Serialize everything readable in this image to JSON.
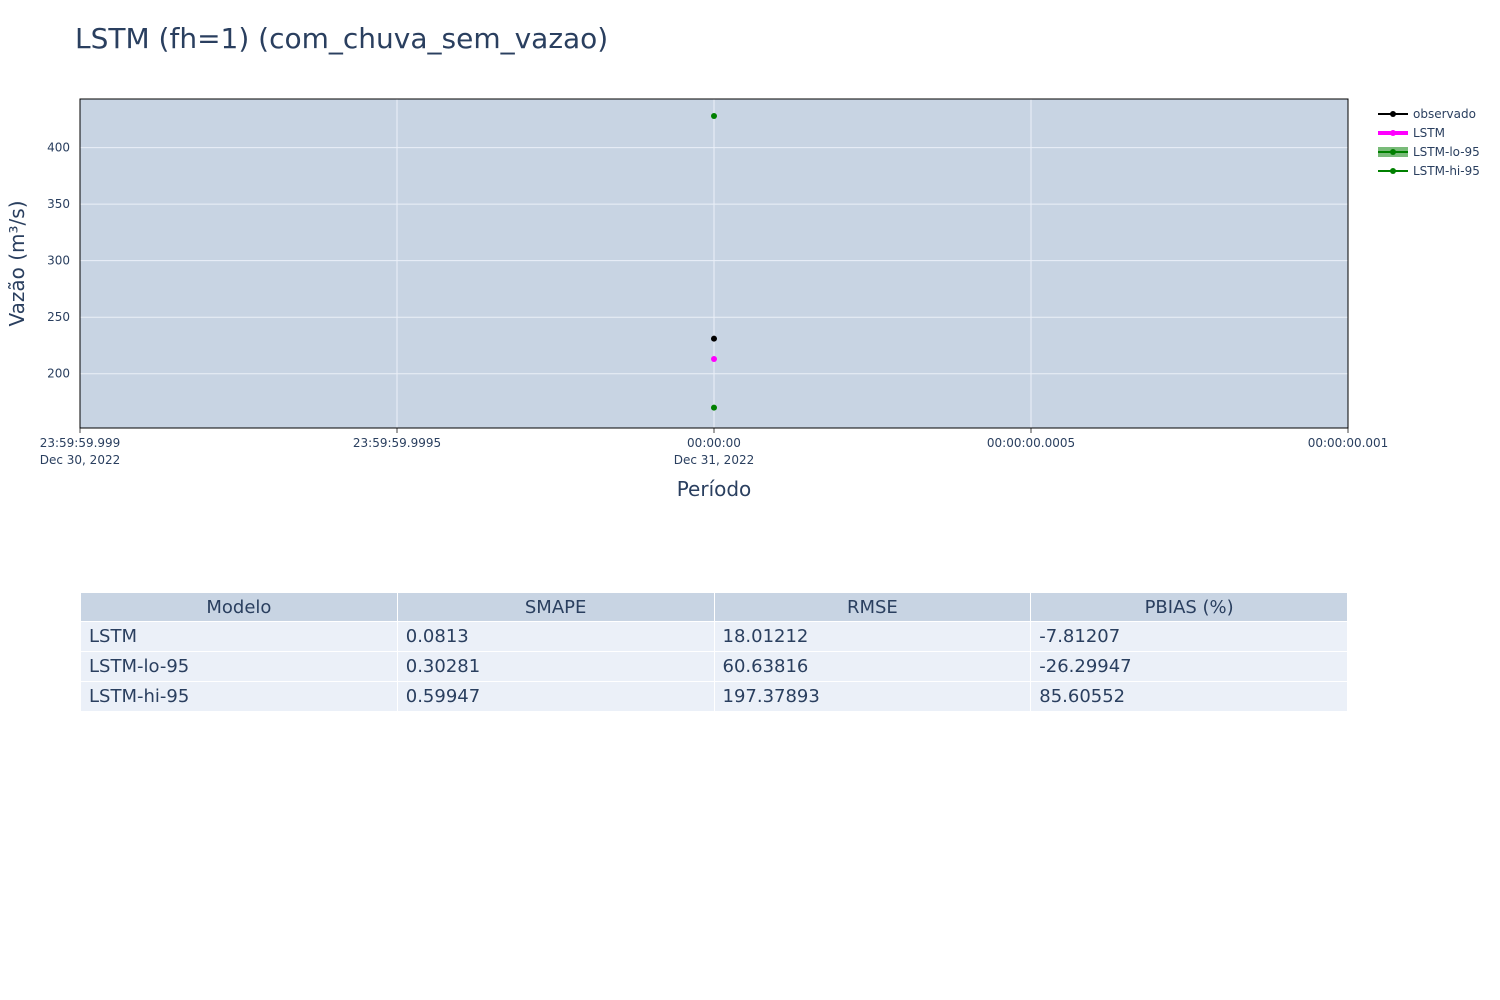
{
  "title": "LSTM (fh=1) (com_chuva_sem_vazao)",
  "colors": {
    "plot_bg": "#c8d4e3",
    "grid": "#ebf0f8",
    "observado": "#000000",
    "lstm": "#ff00ff",
    "lo95": "#008000",
    "hi95": "#008000",
    "band": "#6ab46a"
  },
  "chart_data": {
    "type": "scatter",
    "title": "LSTM (fh=1) (com_chuva_sem_vazao)",
    "xlabel": "Período",
    "ylabel": "Vazão (m³/s)",
    "ylim": [
      152,
      443
    ],
    "yticks": [
      200,
      250,
      300,
      350,
      400
    ],
    "xlim": [
      -0.001,
      0.001
    ],
    "xticks": [
      {
        "value": -0.001,
        "line1": "23:59:59.999",
        "line2": "Dec 30, 2022"
      },
      {
        "value": -0.0005,
        "line1": "23:59:59.9995",
        "line2": ""
      },
      {
        "value": 0,
        "line1": "00:00:00",
        "line2": "Dec 31, 2022"
      },
      {
        "value": 0.0005,
        "line1": "00:00:00.0005",
        "line2": ""
      },
      {
        "value": 0.001,
        "line1": "00:00:00.001",
        "line2": ""
      }
    ],
    "x_note": "x values in seconds relative to 2022-12-31 00:00:00",
    "series": [
      {
        "name": "observado",
        "x": [
          0
        ],
        "values": [
          231
        ]
      },
      {
        "name": "LSTM",
        "x": [
          0
        ],
        "values": [
          213
        ]
      },
      {
        "name": "LSTM-lo-95",
        "x": [
          0
        ],
        "values": [
          170
        ]
      },
      {
        "name": "LSTM-hi-95",
        "x": [
          0
        ],
        "values": [
          428
        ]
      }
    ],
    "legend": "top-right"
  },
  "table": {
    "headers": [
      "Modelo",
      "SMAPE",
      "RMSE",
      "PBIAS (%)"
    ],
    "rows": [
      [
        "LSTM",
        "0.0813",
        "18.01212",
        "-7.81207"
      ],
      [
        "LSTM-lo-95",
        "0.30281",
        "60.63816",
        "-26.29947"
      ],
      [
        "LSTM-hi-95",
        "0.59947",
        "197.37893",
        "85.60552"
      ]
    ]
  }
}
